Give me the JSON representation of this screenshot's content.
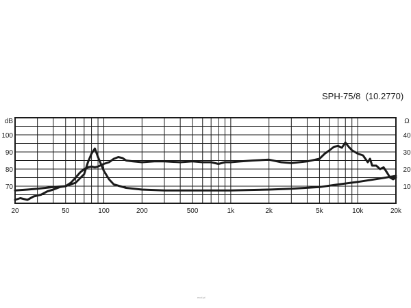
{
  "chart_data": {
    "type": "line",
    "title": "SPH-75/8  (10.2770)",
    "x_scale": "log",
    "xlim": [
      20,
      20000
    ],
    "x_ticks": [
      20,
      50,
      100,
      200,
      500,
      1000,
      2000,
      5000,
      10000,
      20000
    ],
    "x_tick_labels": [
      "20",
      "50",
      "100",
      "200",
      "500",
      "1k",
      "2k",
      "5k",
      "10k",
      "20k"
    ],
    "left_axis": {
      "unit": "dB",
      "lim": [
        60,
        110
      ],
      "ticks": [
        70,
        80,
        90,
        100
      ]
    },
    "right_axis": {
      "unit": "Ω",
      "lim": [
        0,
        50
      ],
      "ticks": [
        10,
        20,
        30,
        40
      ]
    },
    "grid": true,
    "series": [
      {
        "axis": "left",
        "x": [
          20,
          22,
          25,
          28,
          32,
          36,
          40,
          45,
          50,
          55,
          60,
          65,
          70,
          75,
          80,
          85,
          90,
          100,
          110,
          120,
          130,
          140,
          150,
          170,
          200,
          250,
          300,
          400,
          500,
          600,
          700,
          800,
          900,
          1000,
          1200,
          1500,
          2000,
          2500,
          3000,
          4000,
          5000,
          5500,
          6000,
          6500,
          7000,
          7500,
          8000,
          8500,
          9000,
          10000,
          11000,
          12000,
          12500,
          13000,
          14000,
          15000,
          16000,
          17000,
          18000,
          19000,
          20000
        ],
        "y": [
          62,
          63,
          62,
          64,
          65,
          67,
          68,
          69.5,
          70,
          72,
          75,
          78,
          80,
          81,
          81.5,
          81,
          81.5,
          83,
          84,
          86,
          87,
          86.5,
          85,
          84.5,
          84,
          84.5,
          84.5,
          84,
          84.5,
          84,
          84,
          83,
          84,
          84,
          84.5,
          85,
          85.5,
          84,
          83.5,
          84.5,
          86,
          89,
          91,
          93,
          93.5,
          92.5,
          95.5,
          93,
          91,
          89,
          88,
          84,
          86,
          82,
          82,
          80,
          81,
          78,
          75,
          74,
          75
        ]
      },
      {
        "axis": "right",
        "x": [
          20,
          25,
          30,
          40,
          50,
          60,
          70,
          75,
          80,
          85,
          90,
          100,
          110,
          120,
          150,
          200,
          300,
          500,
          1000,
          2000,
          3000,
          5000,
          7000,
          10000,
          15000,
          20000
        ],
        "y": [
          7.5,
          8,
          8.5,
          9.5,
          10,
          12,
          17,
          24,
          29,
          32,
          27,
          19,
          14,
          11,
          9,
          8,
          7.5,
          7.5,
          7.5,
          8,
          8.5,
          9.5,
          11,
          12.5,
          14.5,
          16
        ]
      }
    ]
  },
  "watermark": "ecol.pl"
}
